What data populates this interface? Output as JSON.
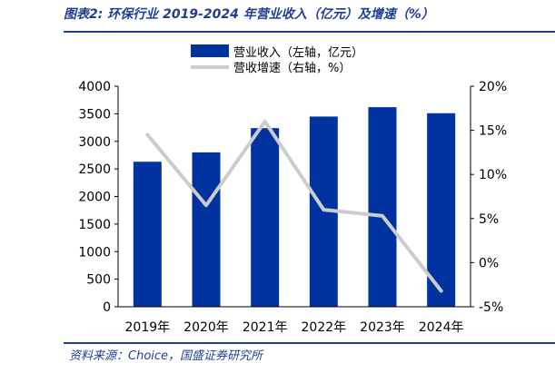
{
  "header": {
    "title": "图表2: 环保行业 2019-2024 年营业收入（亿元）及增速（%）"
  },
  "footer": {
    "source": "资料来源：Choice，国盛证券研究所"
  },
  "chart_data": {
    "type": "bar",
    "categories": [
      "2019年",
      "2020年",
      "2021年",
      "2022年",
      "2023年",
      "2024年"
    ],
    "series": [
      {
        "name": "营业收入（左轴，亿元）",
        "type": "bar",
        "axis": "left",
        "color": "#0033a0",
        "values": [
          2630,
          2800,
          3240,
          3450,
          3620,
          3510
        ]
      },
      {
        "name": "营收增速（右轴，%）",
        "type": "line",
        "axis": "right",
        "color": "#cccccc",
        "values": [
          14.5,
          6.5,
          16.0,
          6.0,
          5.3,
          -3.2
        ]
      }
    ],
    "left_axis": {
      "min": 0,
      "max": 4000,
      "ticks": [
        0,
        500,
        1000,
        1500,
        2000,
        2500,
        3000,
        3500,
        4000
      ]
    },
    "right_axis": {
      "min": -5,
      "max": 20,
      "ticks": [
        -5,
        0,
        5,
        10,
        15,
        20
      ],
      "tick_labels": [
        "-5%",
        "0%",
        "5%",
        "10%",
        "15%",
        "20%"
      ]
    },
    "legend_position": "top-center",
    "grid": false
  }
}
